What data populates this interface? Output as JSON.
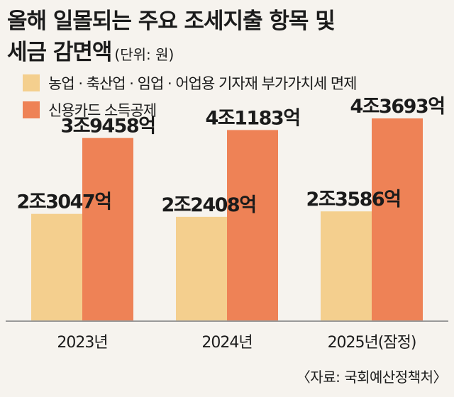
{
  "title_line1": "올해 일몰되는 주요 조세지출 항목 및",
  "title_line2": "세금 감면액",
  "unit": "(단위: 원)",
  "source": "〈자료: 국회예산정책처〉",
  "colors": {
    "series1": "#f4cf8e",
    "series2": "#ee8256",
    "background": "#f6f3ee",
    "baseline": "#999999"
  },
  "chart_data": {
    "type": "bar",
    "categories": [
      "2023년",
      "2024년",
      "2025년(잠정)"
    ],
    "series": [
      {
        "name": "농업 · 축산업 · 임업 · 어업용 기자재 부가가치세 면제",
        "values": [
          23047,
          22408,
          23586
        ],
        "labels": [
          "2조3047억",
          "2조2408억",
          "2조3586억"
        ]
      },
      {
        "name": "신용카드 소득공제",
        "values": [
          39458,
          41183,
          43693
        ],
        "labels": [
          "3조9458억",
          "4조1183억",
          "4조3693억"
        ]
      }
    ],
    "value_unit": "억원",
    "ylim": [
      0,
      46000
    ],
    "grid": false,
    "legend": "top-left"
  }
}
